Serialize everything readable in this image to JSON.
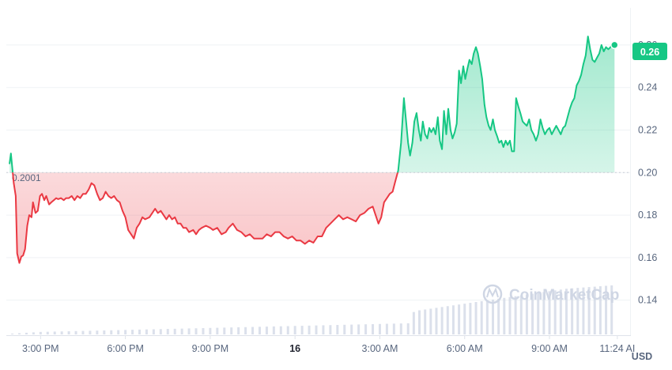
{
  "chart_data": {
    "type": "area",
    "reference_value": 0.2,
    "reference_label": "0.2001",
    "current_value_label": "0.26",
    "currency": "USD",
    "watermark": "CoinMarketCap",
    "ylim": [
      0.125,
      0.27
    ],
    "xlim": [
      13.9,
      35.6
    ],
    "y_ticks": [
      {
        "value": 0.14,
        "label": "0.14"
      },
      {
        "value": 0.16,
        "label": "0.16"
      },
      {
        "value": 0.18,
        "label": "0.18"
      },
      {
        "value": 0.2,
        "label": "0.20"
      },
      {
        "value": 0.22,
        "label": "0.22"
      },
      {
        "value": 0.24,
        "label": "0.24"
      },
      {
        "value": 0.26,
        "label": "0.26"
      }
    ],
    "x_ticks": [
      {
        "value": 15,
        "label": "3:00 PM"
      },
      {
        "value": 18,
        "label": "6:00 PM"
      },
      {
        "value": 21,
        "label": "9:00 PM"
      },
      {
        "value": 24,
        "label": "16"
      },
      {
        "value": 27,
        "label": "3:00 AM"
      },
      {
        "value": 30,
        "label": "6:00 AM"
      },
      {
        "value": 33,
        "label": "9:00 AM"
      },
      {
        "value": 35.4,
        "label": "11:24 AI"
      }
    ],
    "price": {
      "x": [
        13.9,
        13.95,
        14.05,
        14.12,
        14.17,
        14.25,
        14.32,
        14.38,
        14.45,
        14.53,
        14.6,
        14.68,
        14.73,
        14.82,
        14.9,
        14.98,
        15.05,
        15.13,
        15.2,
        15.3,
        15.38,
        15.47,
        15.55,
        15.62,
        15.72,
        15.82,
        15.9,
        16.0,
        16.1,
        16.2,
        16.3,
        16.4,
        16.5,
        16.6,
        16.7,
        16.8,
        16.9,
        17.0,
        17.1,
        17.2,
        17.3,
        17.4,
        17.5,
        17.6,
        17.7,
        17.8,
        17.9,
        18.0,
        18.1,
        18.2,
        18.3,
        18.4,
        18.5,
        18.6,
        18.7,
        18.85,
        18.95,
        19.05,
        19.15,
        19.25,
        19.35,
        19.45,
        19.55,
        19.65,
        19.75,
        19.85,
        19.95,
        20.05,
        20.15,
        20.25,
        20.4,
        20.5,
        20.6,
        20.7,
        20.85,
        21.0,
        21.1,
        21.25,
        21.4,
        21.55,
        21.65,
        21.8,
        21.95,
        22.1,
        22.25,
        22.4,
        22.55,
        22.7,
        22.85,
        23.0,
        23.15,
        23.3,
        23.45,
        23.6,
        23.75,
        23.9,
        24.05,
        24.2,
        24.35,
        24.5,
        24.65,
        24.8,
        24.95,
        25.1,
        25.25,
        25.4,
        25.55,
        25.7,
        25.85,
        26.0,
        26.15,
        26.3,
        26.45,
        26.6,
        26.75,
        26.85,
        26.95,
        27.05,
        27.15,
        27.25,
        27.35,
        27.45,
        27.55,
        27.65,
        27.75,
        27.85,
        27.93,
        28.0,
        28.07,
        28.15,
        28.22,
        28.3,
        28.38,
        28.45,
        28.52,
        28.6,
        28.68,
        28.75,
        28.82,
        28.9,
        28.97,
        29.05,
        29.12,
        29.2,
        29.27,
        29.35,
        29.42,
        29.5,
        29.57,
        29.65,
        29.72,
        29.8,
        29.87,
        29.95,
        30.02,
        30.1,
        30.17,
        30.25,
        30.32,
        30.4,
        30.47,
        30.55,
        30.62,
        30.7,
        30.77,
        30.85,
        30.92,
        31.0,
        31.07,
        31.15,
        31.22,
        31.3,
        31.37,
        31.45,
        31.52,
        31.6,
        31.67,
        31.75,
        31.82,
        31.9,
        31.97,
        32.05,
        32.12,
        32.2,
        32.28,
        32.36,
        32.44,
        32.52,
        32.6,
        32.68,
        32.76,
        32.84,
        32.92,
        33.0,
        33.08,
        33.16,
        33.24,
        33.32,
        33.4,
        33.48,
        33.56,
        33.64,
        33.72,
        33.8,
        33.88,
        33.96,
        34.04,
        34.12,
        34.2,
        34.28,
        34.36,
        34.44,
        34.52,
        34.6,
        34.68,
        34.76,
        34.84,
        34.92,
        35.0,
        35.08,
        35.16,
        35.24,
        35.3
      ],
      "y": [
        0.204,
        0.209,
        0.195,
        0.189,
        0.162,
        0.1575,
        0.1605,
        0.161,
        0.164,
        0.175,
        0.18,
        0.179,
        0.186,
        0.181,
        0.182,
        0.189,
        0.19,
        0.187,
        0.189,
        0.185,
        0.186,
        0.187,
        0.188,
        0.1875,
        0.188,
        0.187,
        0.188,
        0.188,
        0.189,
        0.187,
        0.189,
        0.188,
        0.19,
        0.19,
        0.192,
        0.195,
        0.194,
        0.19,
        0.187,
        0.188,
        0.191,
        0.189,
        0.188,
        0.189,
        0.187,
        0.186,
        0.182,
        0.179,
        0.173,
        0.171,
        0.169,
        0.174,
        0.176,
        0.179,
        0.178,
        0.179,
        0.181,
        0.183,
        0.181,
        0.182,
        0.18,
        0.178,
        0.18,
        0.178,
        0.179,
        0.176,
        0.176,
        0.174,
        0.174,
        0.172,
        0.173,
        0.171,
        0.173,
        0.174,
        0.175,
        0.174,
        0.173,
        0.174,
        0.171,
        0.172,
        0.174,
        0.176,
        0.173,
        0.172,
        0.17,
        0.171,
        0.169,
        0.169,
        0.169,
        0.171,
        0.17,
        0.172,
        0.172,
        0.17,
        0.169,
        0.17,
        0.168,
        0.168,
        0.1665,
        0.168,
        0.167,
        0.17,
        0.17,
        0.174,
        0.176,
        0.178,
        0.18,
        0.178,
        0.179,
        0.178,
        0.177,
        0.18,
        0.181,
        0.183,
        0.184,
        0.18,
        0.176,
        0.179,
        0.186,
        0.188,
        0.19,
        0.191,
        0.196,
        0.201,
        0.214,
        0.235,
        0.224,
        0.214,
        0.208,
        0.214,
        0.224,
        0.228,
        0.22,
        0.215,
        0.224,
        0.218,
        0.216,
        0.221,
        0.219,
        0.221,
        0.218,
        0.226,
        0.215,
        0.211,
        0.229,
        0.218,
        0.23,
        0.22,
        0.216,
        0.219,
        0.223,
        0.248,
        0.242,
        0.25,
        0.244,
        0.249,
        0.253,
        0.251,
        0.256,
        0.259,
        0.256,
        0.25,
        0.244,
        0.232,
        0.226,
        0.222,
        0.22,
        0.225,
        0.22,
        0.217,
        0.214,
        0.215,
        0.212,
        0.215,
        0.213,
        0.215,
        0.21,
        0.21,
        0.235,
        0.231,
        0.228,
        0.224,
        0.223,
        0.222,
        0.225,
        0.22,
        0.218,
        0.215,
        0.218,
        0.225,
        0.221,
        0.218,
        0.22,
        0.221,
        0.218,
        0.22,
        0.222,
        0.22,
        0.218,
        0.221,
        0.222,
        0.226,
        0.23,
        0.233,
        0.235,
        0.241,
        0.243,
        0.246,
        0.251,
        0.255,
        0.264,
        0.258,
        0.253,
        0.252,
        0.254,
        0.256,
        0.26,
        0.257,
        0.259,
        0.258,
        0.259,
        0.261,
        0.26
      ]
    },
    "volume": {
      "x": [
        14.0,
        14.25,
        14.5,
        14.75,
        15.0,
        15.25,
        15.5,
        15.75,
        16.0,
        16.25,
        16.5,
        16.75,
        17.0,
        17.25,
        17.5,
        17.75,
        18.0,
        18.25,
        18.5,
        18.75,
        19.0,
        19.25,
        19.5,
        19.75,
        20.0,
        20.25,
        20.5,
        20.75,
        21.0,
        21.25,
        21.5,
        21.75,
        22.0,
        22.25,
        22.5,
        22.75,
        23.0,
        23.25,
        23.5,
        23.75,
        24.0,
        24.25,
        24.5,
        24.75,
        25.0,
        25.25,
        25.5,
        25.75,
        26.0,
        26.25,
        26.5,
        26.75,
        27.0,
        27.25,
        27.5,
        27.75,
        28.0,
        28.2,
        28.4,
        28.6,
        28.8,
        29.0,
        29.2,
        29.4,
        29.6,
        29.8,
        30.0,
        30.2,
        30.4,
        30.6,
        30.8,
        31.0,
        31.2,
        31.4,
        31.6,
        31.8,
        32.0,
        32.2,
        32.4,
        32.6,
        32.8,
        33.0,
        33.2,
        33.4,
        33.6,
        33.8,
        34.0,
        34.2,
        34.4,
        34.6,
        34.8,
        35.0,
        35.2
      ],
      "values": [
        1,
        1.5,
        2,
        2.5,
        3,
        3.2,
        3.4,
        3.6,
        3.8,
        4,
        4.2,
        4.4,
        4.6,
        4.8,
        5,
        5.2,
        5.4,
        5.6,
        5.8,
        6,
        6.2,
        6.4,
        6.6,
        6.8,
        7,
        7.2,
        7.4,
        7.6,
        7.8,
        8,
        8.2,
        8.4,
        8.6,
        8.8,
        9,
        9.2,
        9.4,
        9.6,
        9.8,
        10,
        10.2,
        10.4,
        10.6,
        10.8,
        11,
        11.2,
        11.4,
        11.6,
        11.8,
        12,
        12.2,
        12.4,
        12.6,
        12.8,
        13,
        13.2,
        13.4,
        27,
        29,
        30,
        31,
        32,
        33,
        34,
        35,
        36,
        37,
        38,
        39,
        40,
        41,
        42,
        43,
        44,
        45,
        46,
        47,
        48,
        49,
        50,
        51,
        52,
        53,
        54,
        55,
        55.5,
        56,
        56.5,
        57,
        57.5,
        58,
        58.5,
        59
      ]
    },
    "colors": {
      "up": "#16c784",
      "down": "#ea3943",
      "grid": "#eff2f5",
      "volume": "#cfd6e4",
      "tick": "#58667e"
    }
  }
}
